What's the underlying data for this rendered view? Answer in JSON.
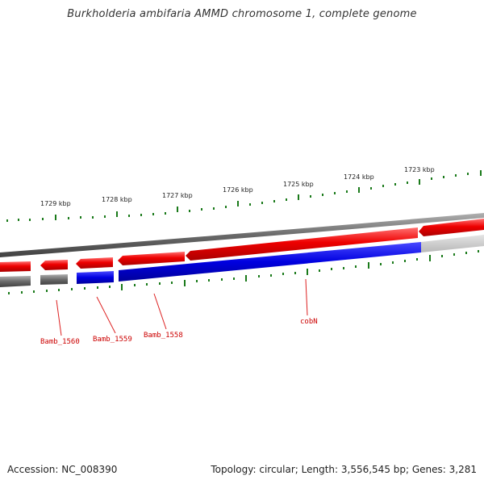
{
  "title": "Burkholderia ambifaria AMMD chromosome 1, complete genome",
  "footer": {
    "accession": "Accession: NC_008390",
    "summary": "Topology: circular; Length: 3,556,545 bp; Genes: 3,281"
  },
  "colors": {
    "forward_strand": "#e00000",
    "reverse_strand": "#0000dd",
    "backbone": "#808080",
    "ticks": "#1a7a1a",
    "gene_label": "#cc0000"
  },
  "scale_labels": [
    "1729 kbp",
    "1728 kbp",
    "1727 kbp",
    "1726 kbp",
    "1725 kbp",
    "1724 kbp",
    "1723 kbp"
  ],
  "genes": [
    {
      "name": "Bamb_1560",
      "label": "Bamb_1560"
    },
    {
      "name": "Bamb_1559",
      "label": "Bamb_1559"
    },
    {
      "name": "Bamb_1558",
      "label": "Bamb_1558"
    },
    {
      "name": "cobN",
      "label": "cobN"
    }
  ]
}
